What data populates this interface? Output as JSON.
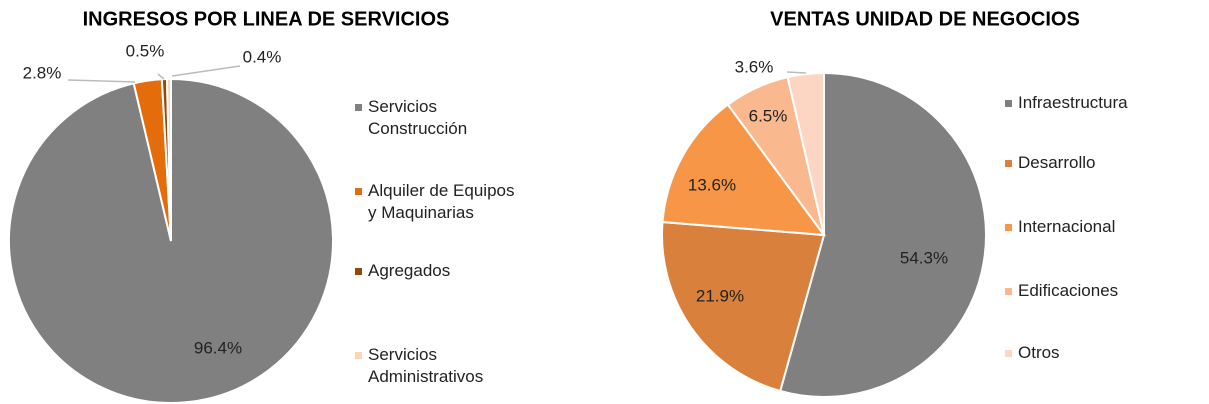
{
  "chart_data": [
    {
      "type": "pie",
      "title": "INGRESOS POR LINEA DE  SERVICIOS",
      "categories": [
        "Servicios Construcción",
        "Alquiler de Equipos y Maquinarias",
        "Agregados",
        "Servicios Administrativos"
      ],
      "values": [
        96.4,
        2.8,
        0.5,
        0.4
      ],
      "value_labels": [
        "96.4%",
        "2.8%",
        "0.5%",
        "0.4%"
      ],
      "colors": [
        "#808080",
        "#e46c0a",
        "#974806",
        "#fcd5b4"
      ]
    },
    {
      "type": "pie",
      "title": "VENTAS UNIDAD DE NEGOCIOS",
      "categories": [
        "Infraestructura",
        "Desarrollo",
        "Internacional",
        "Edificaciones",
        "Otros"
      ],
      "values": [
        54.3,
        21.9,
        13.6,
        6.5,
        3.6
      ],
      "value_labels": [
        "54.3%",
        "21.9%",
        "13.6%",
        "6.5%",
        "3.6%"
      ],
      "colors": [
        "#808080",
        "#d9803c",
        "#f79646",
        "#f9b88e",
        "#fcd5c3"
      ]
    }
  ]
}
